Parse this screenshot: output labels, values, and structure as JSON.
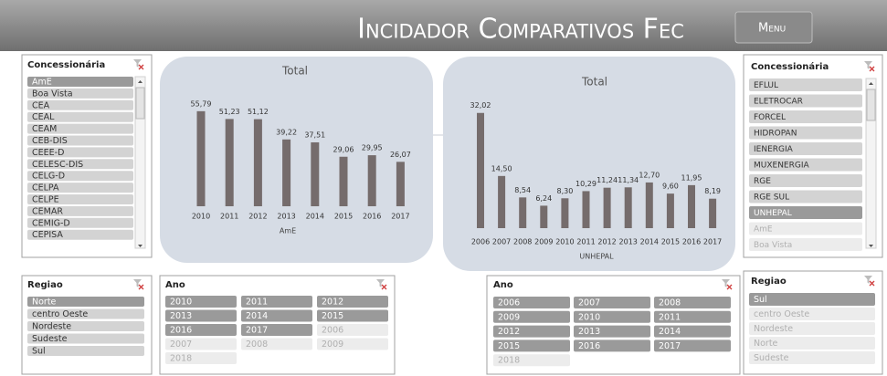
{
  "header": {
    "title": "Incidador Comparativos Fec",
    "menu": "Menu"
  },
  "slicers": [
    {
      "title": "Concessionária",
      "items": [
        {
          "label": "AmE",
          "state": "selected"
        },
        {
          "label": "Boa Vista",
          "state": "available"
        },
        {
          "label": "CEA",
          "state": "available"
        },
        {
          "label": "CEAL",
          "state": "available"
        },
        {
          "label": "CEAM",
          "state": "available"
        },
        {
          "label": "CEB-DIS",
          "state": "available"
        },
        {
          "label": "CEEE-D",
          "state": "available"
        },
        {
          "label": "CELESC-DIS",
          "state": "available"
        },
        {
          "label": "CELG-D",
          "state": "available"
        },
        {
          "label": "CELPA",
          "state": "available"
        },
        {
          "label": "CELPE",
          "state": "available"
        },
        {
          "label": "CEMAR",
          "state": "available"
        },
        {
          "label": "CEMIG-D",
          "state": "available"
        },
        {
          "label": "CEPISA",
          "state": "available"
        }
      ]
    },
    {
      "title": "Regiao",
      "items": [
        {
          "label": "Norte",
          "state": "selected"
        },
        {
          "label": "centro Oeste",
          "state": "available"
        },
        {
          "label": "Nordeste",
          "state": "available"
        },
        {
          "label": "Sudeste",
          "state": "available"
        },
        {
          "label": "Sul",
          "state": "available"
        }
      ]
    },
    {
      "title": "Ano",
      "items": [
        {
          "label": "2010",
          "state": "selected"
        },
        {
          "label": "2011",
          "state": "selected"
        },
        {
          "label": "2012",
          "state": "selected"
        },
        {
          "label": "2013",
          "state": "selected"
        },
        {
          "label": "2014",
          "state": "selected"
        },
        {
          "label": "2015",
          "state": "selected"
        },
        {
          "label": "2016",
          "state": "selected"
        },
        {
          "label": "2017",
          "state": "selected"
        },
        {
          "label": "2006",
          "state": "empty"
        },
        {
          "label": "2007",
          "state": "empty"
        },
        {
          "label": "2008",
          "state": "empty"
        },
        {
          "label": "2009",
          "state": "empty"
        },
        {
          "label": "2018",
          "state": "empty"
        }
      ]
    },
    {
      "title": "Ano",
      "items": [
        {
          "label": "2006",
          "state": "selected"
        },
        {
          "label": "2007",
          "state": "selected"
        },
        {
          "label": "2008",
          "state": "selected"
        },
        {
          "label": "2009",
          "state": "selected"
        },
        {
          "label": "2010",
          "state": "selected"
        },
        {
          "label": "2011",
          "state": "selected"
        },
        {
          "label": "2012",
          "state": "selected"
        },
        {
          "label": "2013",
          "state": "selected"
        },
        {
          "label": "2014",
          "state": "selected"
        },
        {
          "label": "2015",
          "state": "selected"
        },
        {
          "label": "2016",
          "state": "selected"
        },
        {
          "label": "2017",
          "state": "selected"
        },
        {
          "label": "2018",
          "state": "empty"
        }
      ]
    },
    {
      "title": "Concessionária",
      "items": [
        {
          "label": "EFLUL",
          "state": "available"
        },
        {
          "label": "ELETROCAR",
          "state": "available"
        },
        {
          "label": "FORCEL",
          "state": "available"
        },
        {
          "label": "HIDROPAN",
          "state": "available"
        },
        {
          "label": "IENERGIA",
          "state": "available"
        },
        {
          "label": "MUXENERGIA",
          "state": "available"
        },
        {
          "label": "RGE",
          "state": "available"
        },
        {
          "label": "RGE SUL",
          "state": "available"
        },
        {
          "label": "UNHEPAL",
          "state": "selected"
        },
        {
          "label": "AmE",
          "state": "empty"
        },
        {
          "label": "Boa Vista",
          "state": "empty"
        }
      ]
    },
    {
      "title": "Regiao",
      "items": [
        {
          "label": "Sul",
          "state": "selected"
        },
        {
          "label": "centro Oeste",
          "state": "empty"
        },
        {
          "label": "Nordeste",
          "state": "empty"
        },
        {
          "label": "Norte",
          "state": "empty"
        },
        {
          "label": "Sudeste",
          "state": "empty"
        }
      ]
    }
  ],
  "chart_data": [
    {
      "type": "bar",
      "title": "Total",
      "xlabel": "AmE",
      "color": "#756c6c",
      "categories": [
        "2010",
        "2011",
        "2012",
        "2013",
        "2014",
        "2015",
        "2016",
        "2017"
      ],
      "values": [
        55.79,
        51.23,
        51.12,
        39.22,
        37.51,
        29.06,
        29.95,
        26.07
      ],
      "value_labels": [
        "55,79",
        "51,23",
        "51,12",
        "39,22",
        "37,51",
        "29,06",
        "29,95",
        "26,07"
      ],
      "ylim": [
        0,
        60
      ]
    },
    {
      "type": "bar",
      "title": "Total",
      "xlabel": "UNHEPAL",
      "color": "#756c6c",
      "categories": [
        "2006",
        "2007",
        "2008",
        "2009",
        "2010",
        "2011",
        "2012",
        "2013",
        "2014",
        "2015",
        "2016",
        "2017"
      ],
      "values": [
        32.02,
        14.5,
        8.54,
        6.24,
        8.3,
        10.29,
        11.24,
        11.34,
        12.7,
        9.6,
        11.95,
        8.19
      ],
      "value_labels": [
        "32,02",
        "14,50",
        "8,54",
        "6,24",
        "8,30",
        "10,29",
        "11,24",
        "11,34",
        "12,70",
        "9,60",
        "11,95",
        "8,19"
      ],
      "ylim": [
        0,
        35
      ]
    }
  ]
}
